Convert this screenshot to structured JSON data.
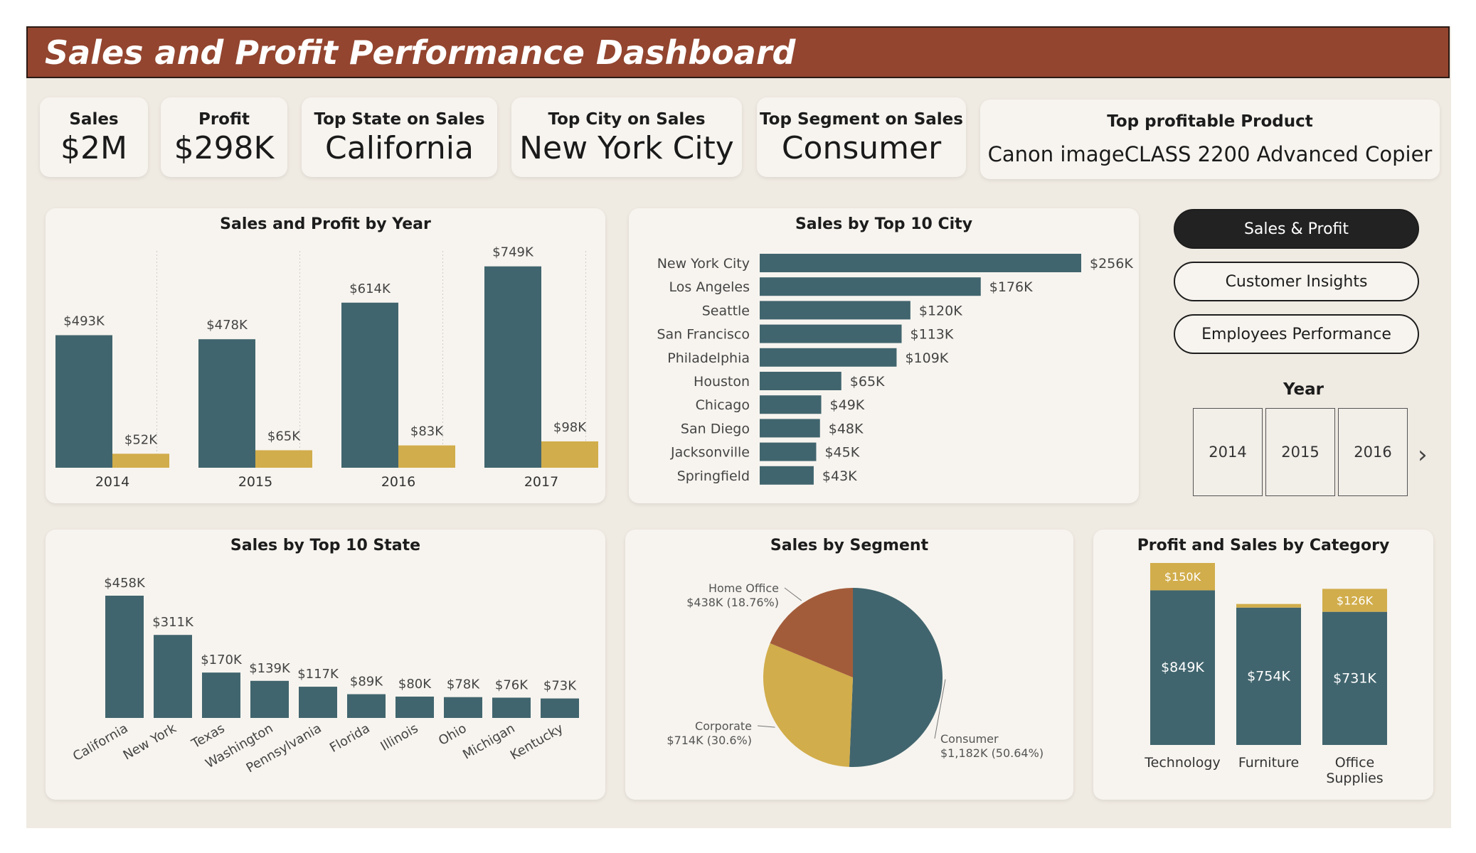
{
  "header": {
    "title": "Sales and Profit Performance Dashboard"
  },
  "kpis": {
    "sales": {
      "label": "Sales",
      "value": "$2M"
    },
    "profit": {
      "label": "Profit",
      "value": "$298K"
    },
    "top_state": {
      "label": "Top State on Sales",
      "value": "California"
    },
    "top_city": {
      "label": "Top City on Sales",
      "value": "New York City"
    },
    "top_segment": {
      "label": "Top Segment on Sales",
      "value": "Consumer"
    },
    "top_product": {
      "label": "Top profitable Product",
      "value": "Canon imageCLASS 2200 Advanced Copier"
    }
  },
  "nav": {
    "sales_profit": "Sales & Profit",
    "customer_insights": "Customer Insights",
    "employees_performance": "Employees Performance"
  },
  "year_slicer": {
    "title": "Year",
    "years": [
      "2014",
      "2015",
      "2016"
    ]
  },
  "colors": {
    "teal": "#41656e",
    "gold": "#d1ad4b",
    "rust": "#a35c3a",
    "header": "#93452f"
  },
  "chart_data": [
    {
      "id": "year",
      "type": "bar",
      "title": "Sales and Profit by Year",
      "categories": [
        "2014",
        "2015",
        "2016",
        "2017"
      ],
      "series": [
        {
          "values": [
            493,
            478,
            614,
            749
          ],
          "labels": [
            "$493K",
            "$478K",
            "$614K",
            "$749K"
          ],
          "color": "#41656e"
        },
        {
          "values": [
            52,
            65,
            83,
            98
          ],
          "labels": [
            "$52K",
            "$65K",
            "$83K",
            "$98K"
          ],
          "color": "#d1ad4b"
        }
      ],
      "unit": "K",
      "ylim": [
        0,
        780
      ]
    },
    {
      "id": "city",
      "type": "bar",
      "orientation": "horizontal",
      "title": "Sales by Top 10 City",
      "categories": [
        "New York City",
        "Los Angeles",
        "Seattle",
        "San Francisco",
        "Philadelphia",
        "Houston",
        "Chicago",
        "San Diego",
        "Jacksonville",
        "Springfield"
      ],
      "values": [
        256,
        176,
        120,
        113,
        109,
        65,
        49,
        48,
        45,
        43
      ],
      "labels": [
        "$256K",
        "$176K",
        "$120K",
        "$113K",
        "$109K",
        "$65K",
        "$49K",
        "$48K",
        "$45K",
        "$43K"
      ],
      "unit": "K",
      "xlim": [
        0,
        256
      ]
    },
    {
      "id": "state",
      "type": "bar",
      "title": "Sales by Top 10 State",
      "categories": [
        "California",
        "New York",
        "Texas",
        "Washington",
        "Pennsylvania",
        "Florida",
        "Illinois",
        "Ohio",
        "Michigan",
        "Kentucky"
      ],
      "values": [
        458,
        311,
        170,
        139,
        117,
        89,
        80,
        78,
        76,
        73
      ],
      "labels": [
        "$458K",
        "$311K",
        "$170K",
        "$139K",
        "$117K",
        "$89K",
        "$80K",
        "$78K",
        "$76K",
        "$73K"
      ],
      "unit": "K",
      "ylim": [
        0,
        458
      ]
    },
    {
      "id": "segment",
      "type": "pie",
      "title": "Sales by Segment",
      "slices": [
        {
          "name": "Consumer",
          "value": 50.64,
          "label": "$1,182K (50.64%)",
          "color": "#41656e"
        },
        {
          "name": "Corporate",
          "value": 30.6,
          "label": "$714K (30.6%)",
          "color": "#d1ad4b"
        },
        {
          "name": "Home Office",
          "value": 18.76,
          "label": "$438K (18.76%)",
          "color": "#a35c3a"
        }
      ]
    },
    {
      "id": "category",
      "type": "bar",
      "stacked": true,
      "title": "Profit and Sales by Category",
      "categories": [
        "Technology",
        "Furniture",
        "Office Supplies"
      ],
      "series": [
        {
          "values": [
            849,
            754,
            731
          ],
          "labels": [
            "$849K",
            "$754K",
            "$731K"
          ],
          "color": "#41656e"
        },
        {
          "values": [
            150,
            20,
            126
          ],
          "labels": [
            "$150K",
            "",
            "$126K"
          ],
          "color": "#d1ad4b"
        }
      ],
      "unit": "K",
      "ylim": [
        0,
        999
      ]
    }
  ]
}
